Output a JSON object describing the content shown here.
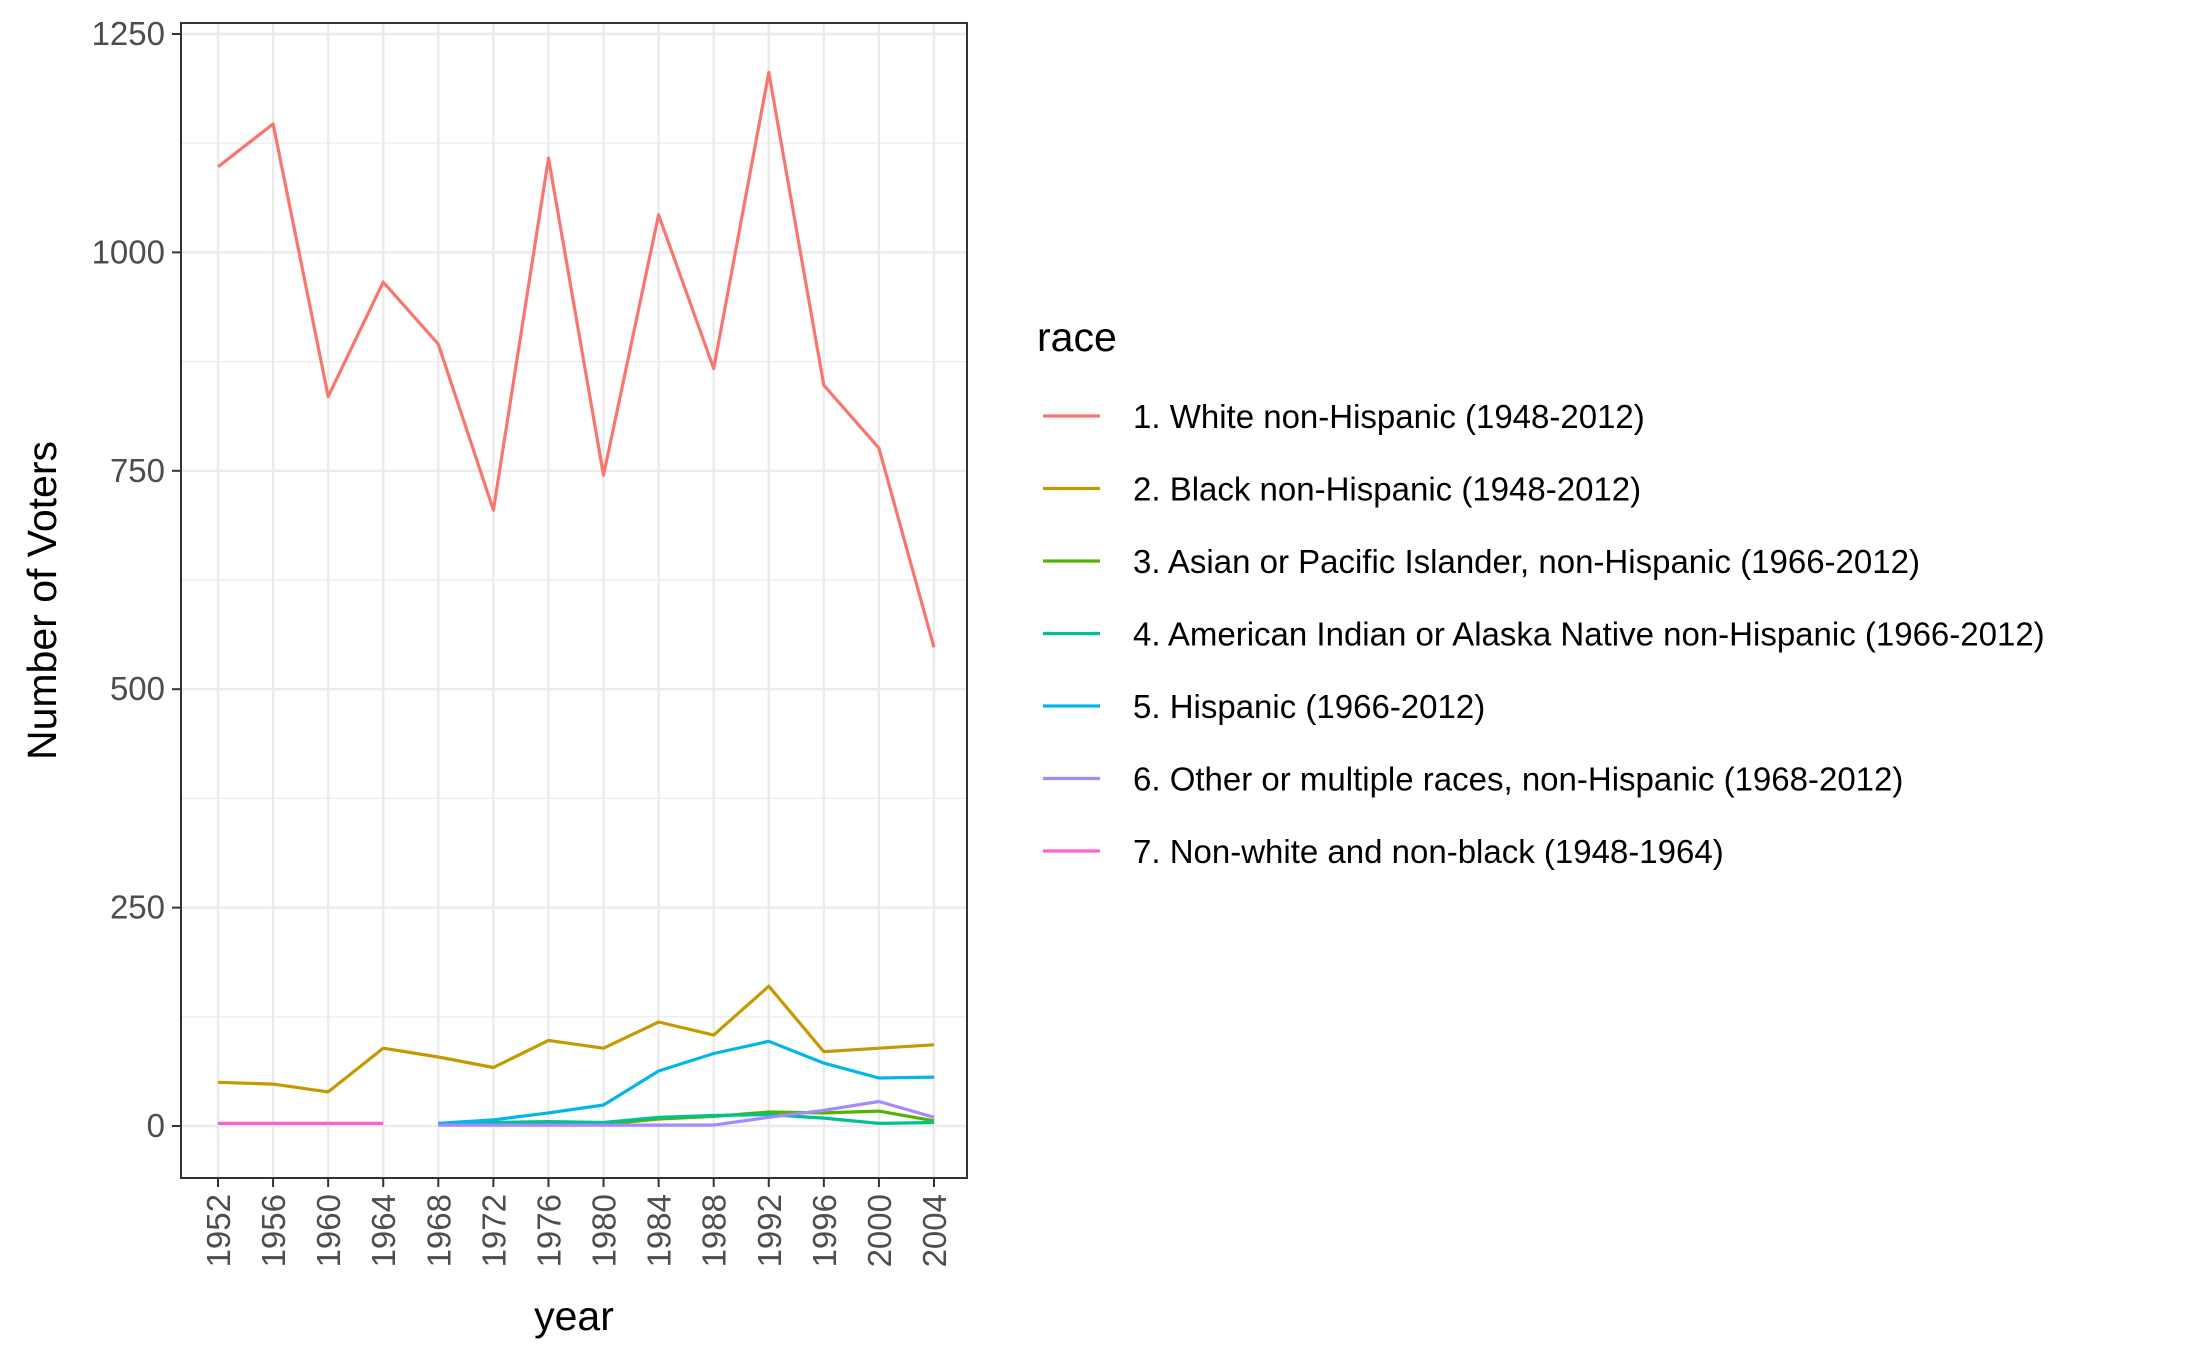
{
  "chart_data": {
    "type": "line",
    "xlabel": "year",
    "ylabel": "Number of Voters",
    "ylim": [
      -60,
      1260
    ],
    "y_ticks": [
      0,
      250,
      500,
      750,
      1000,
      1250
    ],
    "x_ticks": [
      1952,
      1956,
      1960,
      1964,
      1968,
      1972,
      1976,
      1980,
      1984,
      1988,
      1992,
      1996,
      2000,
      2004
    ],
    "grid": true,
    "legend": {
      "title": "race",
      "placement": "right"
    },
    "series": [
      {
        "name": "1. White non-Hispanic (1948-2012)",
        "color": "#F8766D",
        "x": [
          1952,
          1956,
          1960,
          1964,
          1968,
          1972,
          1976,
          1980,
          1984,
          1988,
          1992,
          1996,
          2000,
          2004
        ],
        "values": [
          1098,
          1147,
          835,
          966,
          895,
          705,
          1108,
          745,
          1043,
          867,
          1206,
          848,
          776,
          548
        ]
      },
      {
        "name": "2. Black non-Hispanic (1948-2012)",
        "color": "#C49A00",
        "x": [
          1952,
          1956,
          1960,
          1964,
          1968,
          1972,
          1976,
          1980,
          1984,
          1988,
          1992,
          1996,
          2000,
          2004
        ],
        "values": [
          50,
          48,
          39,
          89,
          79,
          67,
          98,
          89,
          119,
          104,
          160,
          85,
          89,
          93
        ]
      },
      {
        "name": "3. Asian or Pacific Islander, non-Hispanic (1966-2012)",
        "color": "#53B400",
        "x": [
          1968,
          1972,
          1976,
          1980,
          1984,
          1988,
          1992,
          1996,
          2000,
          2004
        ],
        "values": [
          2,
          3,
          3,
          2,
          8,
          11,
          16,
          15,
          17,
          6
        ]
      },
      {
        "name": "4. American Indian or Alaska Native non-Hispanic (1966-2012)",
        "color": "#00C094",
        "x": [
          1968,
          1972,
          1976,
          1980,
          1984,
          1988,
          1992,
          1996,
          2000,
          2004
        ],
        "values": [
          3,
          4,
          5,
          4,
          10,
          12,
          13,
          9,
          3,
          4
        ]
      },
      {
        "name": "5. Hispanic (1966-2012)",
        "color": "#00B6EB",
        "x": [
          1968,
          1972,
          1976,
          1980,
          1984,
          1988,
          1992,
          1996,
          2000,
          2004
        ],
        "values": [
          3,
          7,
          15,
          24,
          63,
          83,
          97,
          72,
          55,
          56
        ]
      },
      {
        "name": "6. Other or multiple races, non-Hispanic (1968-2012)",
        "color": "#A58AFF",
        "x": [
          1968,
          1972,
          1976,
          1980,
          1984,
          1988,
          1992,
          1996,
          2000,
          2004
        ],
        "values": [
          1,
          1,
          1,
          1,
          1,
          1,
          10,
          18,
          28,
          10
        ]
      },
      {
        "name": "7. Non-white and non-black (1948-1964)",
        "color": "#FB61D7",
        "x": [
          1952,
          1956,
          1960,
          1964
        ],
        "values": [
          3,
          3,
          3,
          3
        ]
      }
    ]
  }
}
